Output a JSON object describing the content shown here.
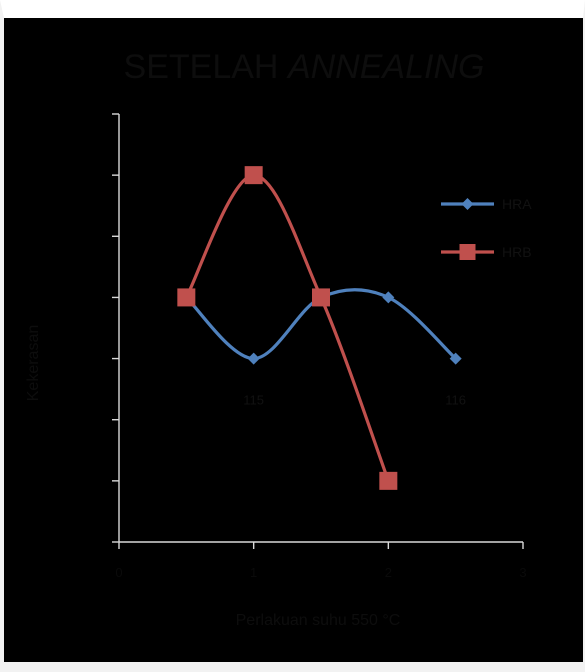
{
  "chart_data": {
    "type": "line",
    "title_parts": [
      "SETELAH",
      "ANNEALING"
    ],
    "xlabel": "Perlakuan suhu 550 °C",
    "ylabel": "Kekerasan",
    "x_ticks": [
      "0",
      "1",
      "2",
      "3"
    ],
    "xlim": [
      0,
      3
    ],
    "ylim": [
      0,
      7
    ],
    "y_ticks": [
      "",
      "",
      "",
      "",
      "",
      "",
      "",
      ""
    ],
    "grid": false,
    "legend_position": "right",
    "series": [
      {
        "name": "HRA",
        "color": "#4f81bd",
        "marker": "diamond",
        "x": [
          0.5,
          1,
          1.5,
          2,
          2.5
        ],
        "y": [
          4,
          3,
          4,
          4,
          3
        ],
        "labels": [
          "",
          "115",
          "",
          "",
          "116"
        ]
      },
      {
        "name": "HRB",
        "color": "#c0504d",
        "marker": "square",
        "x": [
          0.5,
          1,
          1.5,
          2
        ],
        "y": [
          4,
          6,
          4,
          1
        ],
        "labels": [
          "",
          "",
          "",
          ""
        ]
      }
    ]
  }
}
